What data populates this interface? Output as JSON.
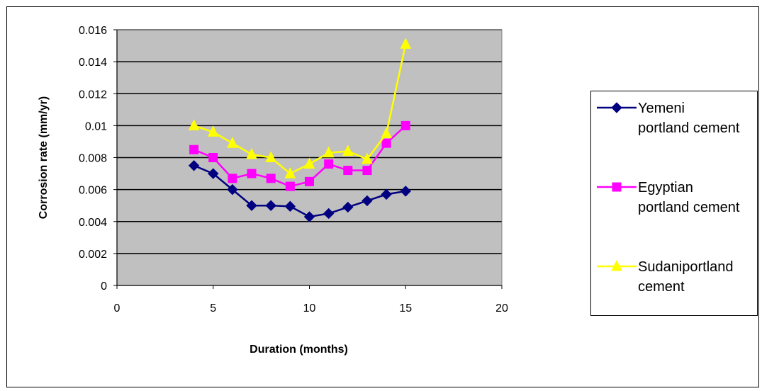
{
  "chart_data": {
    "type": "line",
    "title": "",
    "xlabel": "Duration (months)",
    "ylabel": "Corrosion rate (mm/yr)",
    "xlim": [
      0,
      20
    ],
    "ylim": [
      0,
      0.016
    ],
    "x_ticks": [
      "0",
      "5",
      "10",
      "15",
      "20"
    ],
    "y_ticks": [
      "0",
      "0.002",
      "0.004",
      "0.006",
      "0.008",
      "0.01",
      "0.012",
      "0.014",
      "0.016"
    ],
    "grid": "horizontal",
    "plot_background": "#c0c0c0",
    "legend_position": "right",
    "series": [
      {
        "name": "Yemeni portland cement",
        "color": "#000080",
        "marker": "diamond",
        "x": [
          4,
          5,
          6,
          7,
          8,
          9,
          10,
          11,
          12,
          13,
          14,
          15
        ],
        "values": [
          0.0075,
          0.007,
          0.006,
          0.005,
          0.005,
          0.00495,
          0.0043,
          0.0045,
          0.0049,
          0.0053,
          0.0057,
          0.0059
        ]
      },
      {
        "name": "Egyptian portland cement",
        "color": "#ff00ff",
        "marker": "square",
        "x": [
          4,
          5,
          6,
          7,
          8,
          9,
          10,
          11,
          12,
          13,
          14,
          15
        ],
        "values": [
          0.0085,
          0.008,
          0.0067,
          0.007,
          0.0067,
          0.0062,
          0.0065,
          0.0076,
          0.0072,
          0.0072,
          0.0089,
          0.01
        ]
      },
      {
        "name": "Sudaniportland cement",
        "color": "#ffff00",
        "marker": "triangle",
        "x": [
          4,
          5,
          6,
          7,
          8,
          9,
          10,
          11,
          12,
          13,
          14,
          15
        ],
        "values": [
          0.01,
          0.0096,
          0.0089,
          0.0082,
          0.008,
          0.007,
          0.0076,
          0.0083,
          0.0084,
          0.0079,
          0.0095,
          0.0151
        ]
      }
    ]
  },
  "legend": {
    "items": [
      {
        "line1": "Yemeni",
        "line2": "portland cement"
      },
      {
        "line1": "Egyptian",
        "line2": "portland cement"
      },
      {
        "line1": "Sudaniportland",
        "line2": "cement"
      }
    ]
  }
}
